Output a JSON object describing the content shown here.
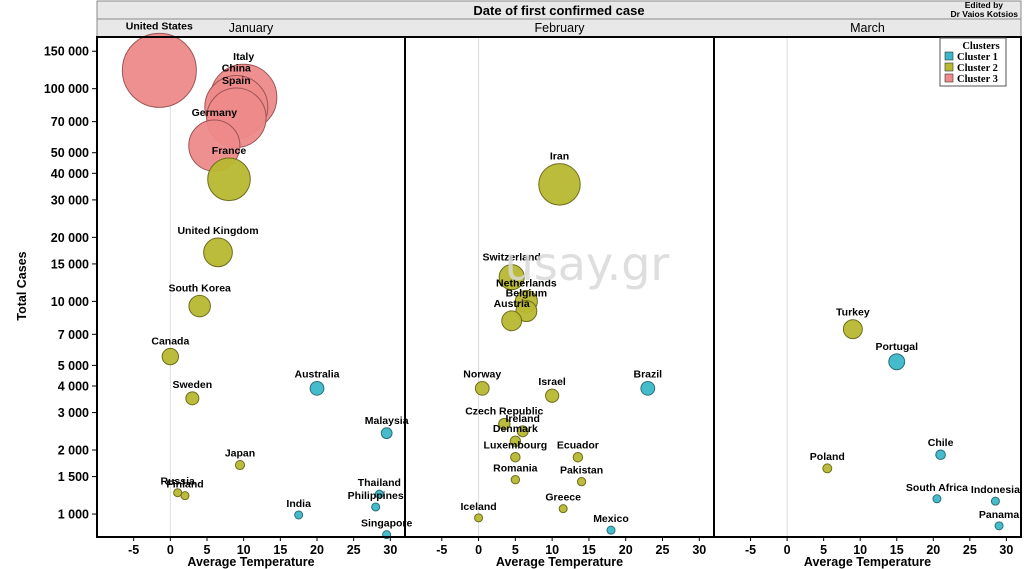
{
  "credit": [
    "Edited by",
    "Dr Vaios Kotsios"
  ],
  "watermark": "usay.gr",
  "chart_data": {
    "type": "scatter",
    "title": "Date of first confirmed case",
    "panels": [
      "January",
      "February",
      "March"
    ],
    "xlabel": "Average Temperature",
    "ylabel": "Total Cases",
    "xlim": [
      -10,
      32
    ],
    "x_ticks": [
      -5,
      0,
      5,
      10,
      15,
      20,
      25,
      30
    ],
    "ylim": [
      780,
      175000
    ],
    "y_scale": "log",
    "y_ticks": [
      1000,
      1500,
      2000,
      3000,
      4000,
      5000,
      7000,
      10000,
      15000,
      20000,
      30000,
      40000,
      50000,
      70000,
      100000,
      150000
    ],
    "y_tick_labels": [
      "1 000",
      "1 500",
      "2 000",
      "3 000",
      "4 000",
      "5 000",
      "7 000",
      "10 000",
      "15 000",
      "20 000",
      "30 000",
      "40 000",
      "50 000",
      "70 000",
      "100 000",
      "150 000"
    ],
    "grid": false,
    "legend": {
      "title": "Clusters",
      "position": "top-right",
      "entries": [
        {
          "name": "Cluster 1",
          "color": "#3ab8c8"
        },
        {
          "name": "Cluster 2",
          "color": "#b8b832"
        },
        {
          "name": "Cluster 3",
          "color": "#ee8a8a"
        }
      ]
    },
    "points": [
      {
        "label": "United States",
        "panel": 0,
        "x": -1.5,
        "y": 122000,
        "cluster": 3
      },
      {
        "label": "Italy",
        "panel": 0,
        "x": 10,
        "y": 91000,
        "cluster": 3
      },
      {
        "label": "China",
        "panel": 0,
        "x": 9,
        "y": 82000,
        "cluster": 3
      },
      {
        "label": "Spain",
        "panel": 0,
        "x": 9,
        "y": 73000,
        "cluster": 3
      },
      {
        "label": "Germany",
        "panel": 0,
        "x": 6,
        "y": 54000,
        "cluster": 3
      },
      {
        "label": "France",
        "panel": 0,
        "x": 8,
        "y": 37500,
        "cluster": 2
      },
      {
        "label": "United Kingdom",
        "panel": 0,
        "x": 6.5,
        "y": 17000,
        "cluster": 2
      },
      {
        "label": "South Korea",
        "panel": 0,
        "x": 4,
        "y": 9500,
        "cluster": 2
      },
      {
        "label": "Canada",
        "panel": 0,
        "x": 0,
        "y": 5500,
        "cluster": 2
      },
      {
        "label": "Australia",
        "panel": 0,
        "x": 20,
        "y": 3900,
        "cluster": 1
      },
      {
        "label": "Sweden",
        "panel": 0,
        "x": 3,
        "y": 3500,
        "cluster": 2
      },
      {
        "label": "Malaysia",
        "panel": 0,
        "x": 29.5,
        "y": 2400,
        "cluster": 1
      },
      {
        "label": "Japan",
        "panel": 0,
        "x": 9.5,
        "y": 1700,
        "cluster": 2
      },
      {
        "label": "Russia",
        "panel": 0,
        "x": 1,
        "y": 1260,
        "cluster": 2
      },
      {
        "label": "Finland",
        "panel": 0,
        "x": 2,
        "y": 1220,
        "cluster": 2
      },
      {
        "label": "Thailand",
        "panel": 0,
        "x": 28.5,
        "y": 1240,
        "cluster": 1
      },
      {
        "label": "Philippines",
        "panel": 0,
        "x": 28,
        "y": 1080,
        "cluster": 1
      },
      {
        "label": "India",
        "panel": 0,
        "x": 17.5,
        "y": 990,
        "cluster": 1
      },
      {
        "label": "Singapore",
        "panel": 0,
        "x": 29.5,
        "y": 800,
        "cluster": 1
      },
      {
        "label": "Iran",
        "panel": 1,
        "x": 11,
        "y": 35500,
        "cluster": 2
      },
      {
        "label": "Switzerland",
        "panel": 1,
        "x": 4.5,
        "y": 13000,
        "cluster": 2
      },
      {
        "label": "Netherlands",
        "panel": 1,
        "x": 6.5,
        "y": 10000,
        "cluster": 2
      },
      {
        "label": "Belgium",
        "panel": 1,
        "x": 6.5,
        "y": 9000,
        "cluster": 2
      },
      {
        "label": "Austria",
        "panel": 1,
        "x": 4.5,
        "y": 8100,
        "cluster": 2
      },
      {
        "label": "Norway",
        "panel": 1,
        "x": 0.5,
        "y": 3900,
        "cluster": 2
      },
      {
        "label": "Israel",
        "panel": 1,
        "x": 10,
        "y": 3600,
        "cluster": 2
      },
      {
        "label": "Brazil",
        "panel": 1,
        "x": 23,
        "y": 3900,
        "cluster": 1
      },
      {
        "label": "Czech Republic",
        "panel": 1,
        "x": 3.5,
        "y": 2650,
        "cluster": 2
      },
      {
        "label": "Ireland",
        "panel": 1,
        "x": 6,
        "y": 2450,
        "cluster": 2
      },
      {
        "label": "Denmark",
        "panel": 1,
        "x": 5,
        "y": 2200,
        "cluster": 2
      },
      {
        "label": "Luxembourg",
        "panel": 1,
        "x": 5,
        "y": 1850,
        "cluster": 2
      },
      {
        "label": "Ecuador",
        "panel": 1,
        "x": 13.5,
        "y": 1850,
        "cluster": 2
      },
      {
        "label": "Romania",
        "panel": 1,
        "x": 5,
        "y": 1450,
        "cluster": 2
      },
      {
        "label": "Pakistan",
        "panel": 1,
        "x": 14,
        "y": 1420,
        "cluster": 2
      },
      {
        "label": "Greece",
        "panel": 1,
        "x": 11.5,
        "y": 1060,
        "cluster": 2
      },
      {
        "label": "Iceland",
        "panel": 1,
        "x": 0,
        "y": 960,
        "cluster": 2
      },
      {
        "label": "Mexico",
        "panel": 1,
        "x": 18,
        "y": 840,
        "cluster": 1
      },
      {
        "label": "Turkey",
        "panel": 2,
        "x": 9,
        "y": 7400,
        "cluster": 2
      },
      {
        "label": "Portugal",
        "panel": 2,
        "x": 15,
        "y": 5200,
        "cluster": 1
      },
      {
        "label": "Chile",
        "panel": 2,
        "x": 21,
        "y": 1900,
        "cluster": 1
      },
      {
        "label": "Poland",
        "panel": 2,
        "x": 5.5,
        "y": 1640,
        "cluster": 2
      },
      {
        "label": "South Africa",
        "panel": 2,
        "x": 20.5,
        "y": 1180,
        "cluster": 1
      },
      {
        "label": "Indonesia",
        "panel": 2,
        "x": 28.5,
        "y": 1150,
        "cluster": 1
      },
      {
        "label": "Panama",
        "panel": 2,
        "x": 29,
        "y": 880,
        "cluster": 1
      }
    ]
  }
}
